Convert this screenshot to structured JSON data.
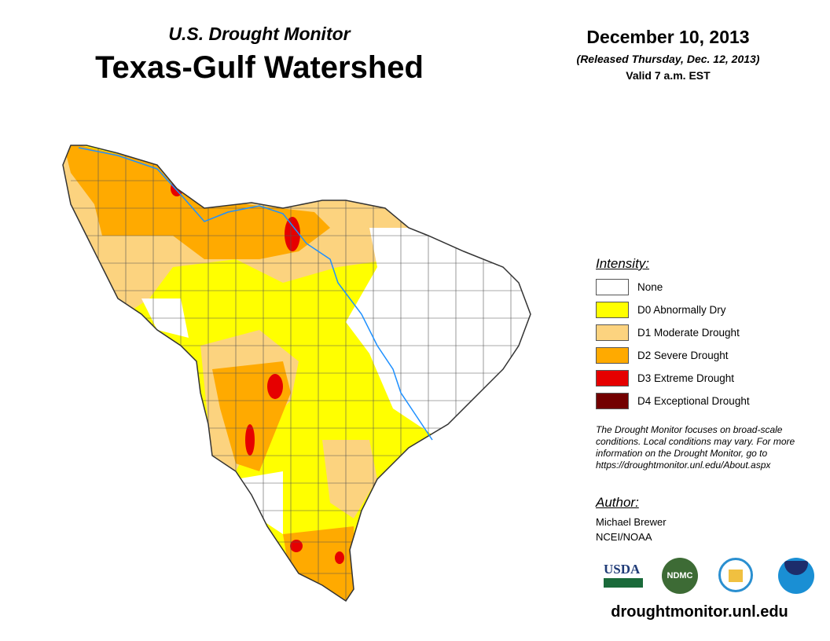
{
  "header": {
    "subtitle": "U.S. Drought Monitor",
    "title": "Texas-Gulf Watershed",
    "date": "December 10, 2013",
    "released": "(Released Thursday, Dec. 12, 2013)",
    "valid": "Valid 7 a.m. EST"
  },
  "legend": {
    "heading": "Intensity:",
    "items": [
      {
        "label": "None",
        "color": "#ffffff"
      },
      {
        "label": "D0 Abnormally Dry",
        "color": "#ffff00"
      },
      {
        "label": "D1 Moderate Drought",
        "color": "#fcd37f"
      },
      {
        "label": "D2 Severe Drought",
        "color": "#ffaa00"
      },
      {
        "label": "D3 Extreme Drought",
        "color": "#e60000"
      },
      {
        "label": "D4 Exceptional Drought",
        "color": "#730000"
      }
    ]
  },
  "note": "The Drought Monitor focuses on broad-scale conditions. Local conditions may vary. For more information on the Drought Monitor, go to https://droughtmonitor.unl.edu/About.aspx",
  "author": {
    "heading": "Author:",
    "name": "Michael Brewer",
    "org": "NCEI/NOAA"
  },
  "logos": [
    "USDA",
    "NDMC",
    "DOC",
    "NOAA"
  ],
  "url": "droughtmonitor.unl.edu"
}
